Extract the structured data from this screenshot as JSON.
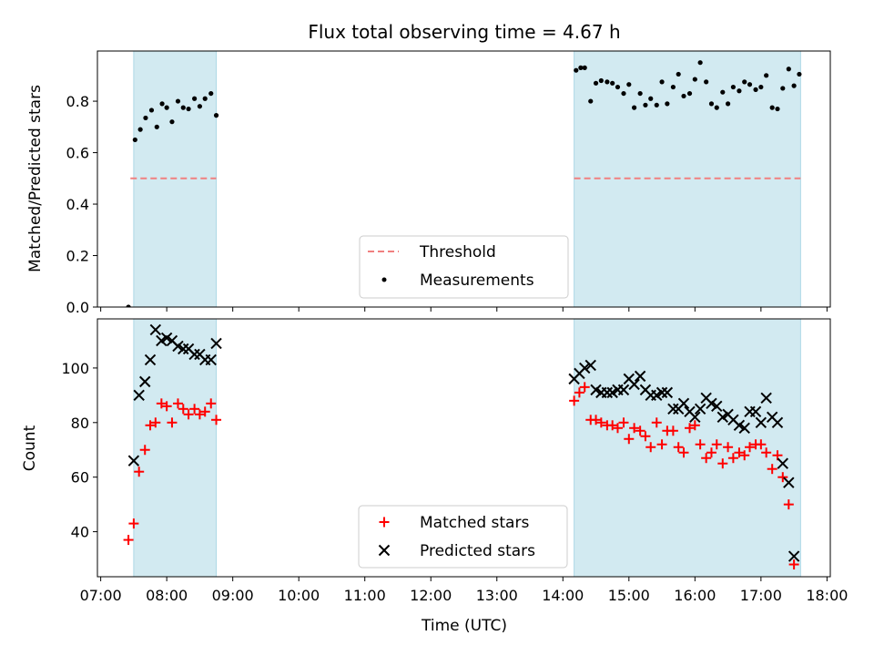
{
  "title": "Flux total observing time = 4.67 h",
  "xlabel": "Time (UTC)",
  "x_ticks": [
    {
      "label": "07:00",
      "v": 7.0
    },
    {
      "label": "08:00",
      "v": 8.0
    },
    {
      "label": "09:00",
      "v": 9.0
    },
    {
      "label": "10:00",
      "v": 10.0
    },
    {
      "label": "11:00",
      "v": 11.0
    },
    {
      "label": "12:00",
      "v": 12.0
    },
    {
      "label": "13:00",
      "v": 13.0
    },
    {
      "label": "14:00",
      "v": 14.0
    },
    {
      "label": "15:00",
      "v": 15.0
    },
    {
      "label": "16:00",
      "v": 16.0
    },
    {
      "label": "17:00",
      "v": 17.0
    },
    {
      "label": "18:00",
      "v": 18.0
    }
  ],
  "colors": {
    "shade": "#add8e6",
    "threshold": "#f08080",
    "measurements": "#000000",
    "matched": "#ff0000",
    "predicted": "#000000"
  },
  "chart_data": [
    {
      "type": "scatter",
      "panel": "top",
      "ylabel": "Matched/Predicted stars",
      "xlim": [
        6.95,
        18.05
      ],
      "ylim": [
        0.0,
        0.995
      ],
      "y_ticks": [
        "0.0",
        "0.2",
        "0.4",
        "0.6",
        "0.8"
      ],
      "y_tick_values": [
        0.0,
        0.2,
        0.4,
        0.6,
        0.8
      ],
      "shaded_spans": [
        [
          7.5,
          8.75
        ],
        [
          14.17,
          17.6
        ]
      ],
      "legend": {
        "placement": "lower-center",
        "entries": [
          "Threshold",
          "Measurements"
        ]
      },
      "threshold": {
        "name": "Threshold",
        "y": 0.5,
        "x_range": [
          7.45,
          8.75
        ],
        "x_range2": [
          14.17,
          17.6
        ]
      },
      "measurements": {
        "name": "Measurements",
        "points": [
          [
            7.42,
            0.0
          ],
          [
            7.52,
            0.65
          ],
          [
            7.6,
            0.69
          ],
          [
            7.68,
            0.735
          ],
          [
            7.77,
            0.765
          ],
          [
            7.85,
            0.7
          ],
          [
            7.93,
            0.79
          ],
          [
            8.0,
            0.775
          ],
          [
            8.08,
            0.72
          ],
          [
            8.17,
            0.8
          ],
          [
            8.25,
            0.775
          ],
          [
            8.33,
            0.77
          ],
          [
            8.42,
            0.81
          ],
          [
            8.5,
            0.78
          ],
          [
            8.58,
            0.81
          ],
          [
            8.67,
            0.83
          ],
          [
            8.75,
            0.745
          ],
          [
            14.2,
            0.92
          ],
          [
            14.27,
            0.93
          ],
          [
            14.33,
            0.93
          ],
          [
            14.42,
            0.8
          ],
          [
            14.5,
            0.87
          ],
          [
            14.58,
            0.88
          ],
          [
            14.67,
            0.875
          ],
          [
            14.75,
            0.87
          ],
          [
            14.83,
            0.855
          ],
          [
            14.92,
            0.83
          ],
          [
            15.0,
            0.865
          ],
          [
            15.08,
            0.775
          ],
          [
            15.17,
            0.83
          ],
          [
            15.25,
            0.785
          ],
          [
            15.33,
            0.81
          ],
          [
            15.42,
            0.785
          ],
          [
            15.5,
            0.875
          ],
          [
            15.58,
            0.79
          ],
          [
            15.67,
            0.855
          ],
          [
            15.75,
            0.905
          ],
          [
            15.83,
            0.82
          ],
          [
            15.92,
            0.83
          ],
          [
            16.0,
            0.885
          ],
          [
            16.08,
            0.95
          ],
          [
            16.17,
            0.875
          ],
          [
            16.25,
            0.79
          ],
          [
            16.33,
            0.775
          ],
          [
            16.42,
            0.835
          ],
          [
            16.5,
            0.79
          ],
          [
            16.58,
            0.855
          ],
          [
            16.67,
            0.84
          ],
          [
            16.75,
            0.875
          ],
          [
            16.83,
            0.865
          ],
          [
            16.92,
            0.845
          ],
          [
            17.0,
            0.855
          ],
          [
            17.08,
            0.9
          ],
          [
            17.17,
            0.775
          ],
          [
            17.25,
            0.77
          ],
          [
            17.33,
            0.85
          ],
          [
            17.42,
            0.925
          ],
          [
            17.5,
            0.86
          ],
          [
            17.58,
            0.905
          ]
        ]
      }
    },
    {
      "type": "scatter",
      "panel": "bottom",
      "ylabel": "Count",
      "xlim": [
        6.95,
        18.05
      ],
      "ylim": [
        23.5,
        118.0
      ],
      "y_ticks": [
        "40",
        "60",
        "80",
        "100"
      ],
      "y_tick_values": [
        40,
        60,
        80,
        100
      ],
      "shaded_spans": [
        [
          7.5,
          8.75
        ],
        [
          14.17,
          17.6
        ]
      ],
      "legend": {
        "placement": "lower-center",
        "entries": [
          "Matched stars",
          "Predicted stars"
        ]
      },
      "series": [
        {
          "name": "Matched stars",
          "marker": "plus",
          "points": [
            [
              7.42,
              37
            ],
            [
              7.5,
              43
            ],
            [
              7.58,
              62
            ],
            [
              7.67,
              70
            ],
            [
              7.75,
              79
            ],
            [
              7.83,
              80
            ],
            [
              7.92,
              87
            ],
            [
              8.0,
              86
            ],
            [
              8.08,
              80
            ],
            [
              8.17,
              87
            ],
            [
              8.25,
              85
            ],
            [
              8.33,
              83
            ],
            [
              8.42,
              85
            ],
            [
              8.5,
              83
            ],
            [
              8.58,
              84
            ],
            [
              8.67,
              87
            ],
            [
              8.75,
              81
            ],
            [
              14.17,
              88
            ],
            [
              14.25,
              91
            ],
            [
              14.33,
              93
            ],
            [
              14.42,
              81
            ],
            [
              14.5,
              81
            ],
            [
              14.58,
              80
            ],
            [
              14.67,
              79
            ],
            [
              14.75,
              79
            ],
            [
              14.83,
              78
            ],
            [
              14.92,
              80
            ],
            [
              15.0,
              74
            ],
            [
              15.08,
              78
            ],
            [
              15.17,
              77
            ],
            [
              15.25,
              75
            ],
            [
              15.33,
              71
            ],
            [
              15.42,
              80
            ],
            [
              15.5,
              72
            ],
            [
              15.58,
              77
            ],
            [
              15.67,
              77
            ],
            [
              15.75,
              71
            ],
            [
              15.83,
              69
            ],
            [
              15.92,
              78
            ],
            [
              16.0,
              79
            ],
            [
              16.08,
              72
            ],
            [
              16.17,
              67
            ],
            [
              16.25,
              69
            ],
            [
              16.33,
              72
            ],
            [
              16.42,
              65
            ],
            [
              16.5,
              71
            ],
            [
              16.58,
              67
            ],
            [
              16.67,
              69
            ],
            [
              16.75,
              68
            ],
            [
              16.83,
              71
            ],
            [
              16.92,
              72
            ],
            [
              17.0,
              72
            ],
            [
              17.08,
              69
            ],
            [
              17.17,
              63
            ],
            [
              17.25,
              68
            ],
            [
              17.33,
              60
            ],
            [
              17.42,
              50
            ],
            [
              17.5,
              28
            ]
          ]
        },
        {
          "name": "Predicted stars",
          "marker": "x",
          "points": [
            [
              7.5,
              66
            ],
            [
              7.58,
              90
            ],
            [
              7.67,
              95
            ],
            [
              7.75,
              103
            ],
            [
              7.83,
              114
            ],
            [
              7.92,
              110
            ],
            [
              8.0,
              111
            ],
            [
              8.08,
              110
            ],
            [
              8.17,
              108
            ],
            [
              8.25,
              107
            ],
            [
              8.33,
              107
            ],
            [
              8.42,
              105
            ],
            [
              8.5,
              105
            ],
            [
              8.58,
              103
            ],
            [
              8.67,
              103
            ],
            [
              8.75,
              109
            ],
            [
              14.17,
              96
            ],
            [
              14.25,
              98
            ],
            [
              14.33,
              100
            ],
            [
              14.42,
              101
            ],
            [
              14.5,
              92
            ],
            [
              14.58,
              91
            ],
            [
              14.67,
              91
            ],
            [
              14.75,
              91
            ],
            [
              14.83,
              92
            ],
            [
              14.92,
              92
            ],
            [
              15.0,
              96
            ],
            [
              15.08,
              94
            ],
            [
              15.17,
              97
            ],
            [
              15.25,
              92
            ],
            [
              15.33,
              90
            ],
            [
              15.42,
              90
            ],
            [
              15.5,
              91
            ],
            [
              15.58,
              91
            ],
            [
              15.67,
              85
            ],
            [
              15.75,
              85
            ],
            [
              15.83,
              87
            ],
            [
              15.92,
              84
            ],
            [
              16.0,
              82
            ],
            [
              16.08,
              85
            ],
            [
              16.17,
              89
            ],
            [
              16.25,
              87
            ],
            [
              16.33,
              86
            ],
            [
              16.42,
              82
            ],
            [
              16.5,
              83
            ],
            [
              16.58,
              81
            ],
            [
              16.67,
              79
            ],
            [
              16.75,
              78
            ],
            [
              16.83,
              84
            ],
            [
              16.92,
              84
            ],
            [
              17.0,
              80
            ],
            [
              17.08,
              89
            ],
            [
              17.17,
              82
            ],
            [
              17.25,
              80
            ],
            [
              17.33,
              65
            ],
            [
              17.42,
              58
            ],
            [
              17.5,
              31
            ]
          ]
        }
      ]
    }
  ]
}
